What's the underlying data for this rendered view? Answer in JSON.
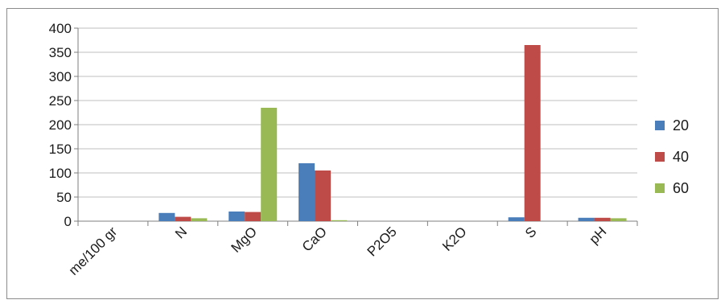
{
  "chart_data": {
    "type": "bar",
    "categories": [
      "me/100 gr",
      "N",
      "MgO",
      "CaO",
      "P2O5",
      "K2O",
      "S",
      "pH"
    ],
    "series": [
      {
        "name": "20",
        "color": "#4a7ebb",
        "values": [
          0,
          17,
          20,
          120,
          0,
          0,
          8,
          7
        ]
      },
      {
        "name": "40",
        "color": "#be4b48",
        "values": [
          0,
          9,
          19,
          105,
          0,
          0,
          365,
          7
        ]
      },
      {
        "name": "60",
        "color": "#98b954",
        "values": [
          0,
          6,
          235,
          2,
          0,
          0,
          0,
          6
        ]
      }
    ],
    "yticks": [
      0,
      50,
      100,
      150,
      200,
      250,
      300,
      350,
      400
    ],
    "ylim": [
      0,
      400
    ],
    "grid": true,
    "legend": "right"
  }
}
